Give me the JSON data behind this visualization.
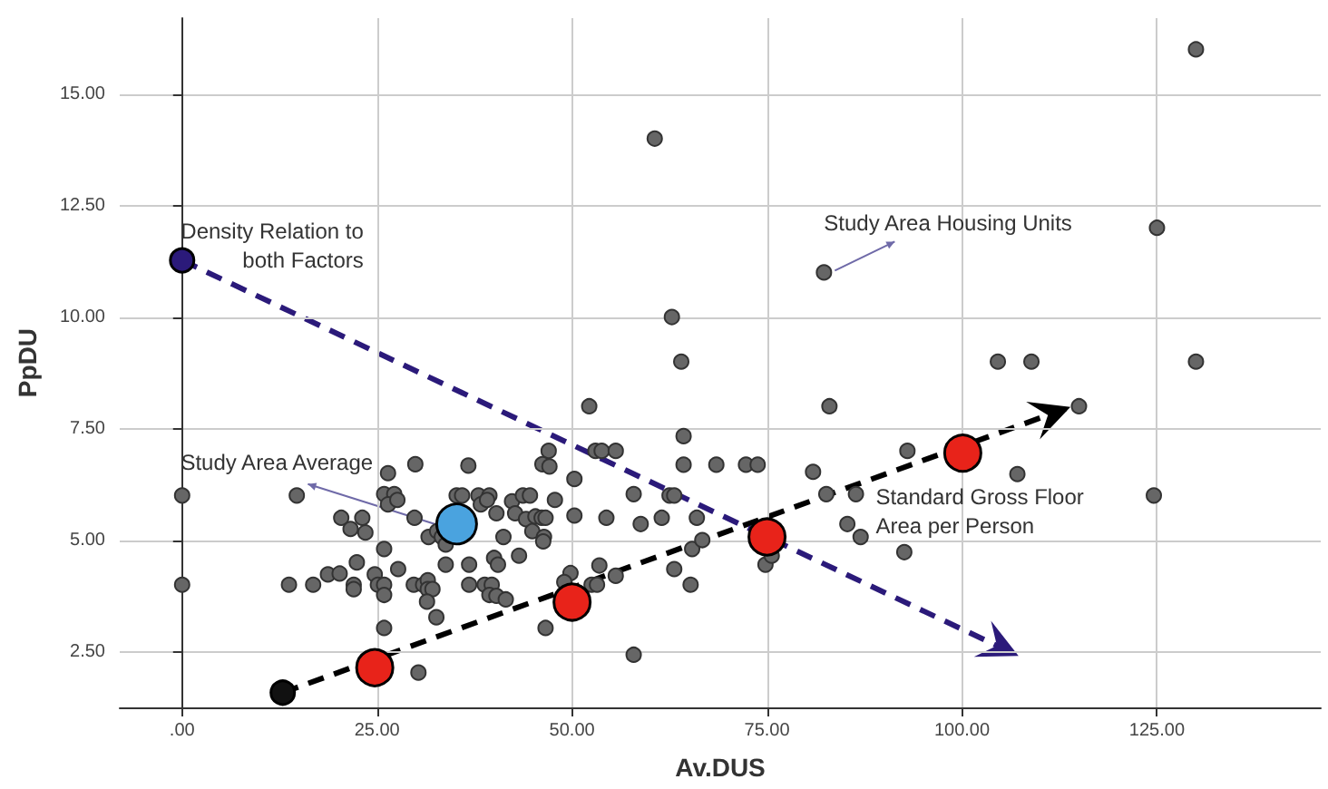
{
  "chart_data": {
    "type": "scatter",
    "xlabel": "Av.DUS",
    "ylabel": "PpDU",
    "xlim": [
      -8,
      146
    ],
    "ylim": [
      1.25,
      16.7
    ],
    "xticks": [
      {
        "value": 0,
        "label": ".00"
      },
      {
        "value": 25,
        "label": "25.00"
      },
      {
        "value": 50,
        "label": "50.00"
      },
      {
        "value": 75,
        "label": "75.00"
      },
      {
        "value": 100,
        "label": "100.00"
      },
      {
        "value": 125,
        "label": "125.00"
      }
    ],
    "yticks": [
      {
        "value": 2.5,
        "label": "2.50"
      },
      {
        "value": 5,
        "label": "5.00"
      },
      {
        "value": 7.5,
        "label": "7.50"
      },
      {
        "value": 10,
        "label": "10.00"
      },
      {
        "value": 12.5,
        "label": "12.50"
      },
      {
        "value": 15,
        "label": "15.00"
      }
    ],
    "grid": true,
    "series": [
      {
        "color": "#666666",
        "marker": "circle",
        "x": [
          0,
          0,
          14.7,
          13.7,
          16.8,
          18.7,
          20.2,
          22,
          22,
          22.4,
          20.4,
          21.6,
          23.1,
          23.5,
          24.7,
          25.1,
          25.9,
          25.9,
          25.9,
          25.9,
          26.4,
          25.9,
          27.2,
          26.4,
          27.6,
          27.7,
          29.9,
          29.8,
          30.3,
          29.7,
          30.9,
          31.5,
          31.5,
          32.1,
          31.4,
          32.6,
          31.6,
          32.7,
          33.3,
          33.8,
          33.8,
          35.2,
          35.9,
          36.7,
          36.8,
          36.8,
          38.0,
          39.4,
          38.3,
          39.1,
          38.8,
          39.7,
          39.4,
          40.3,
          41.5,
          40.0,
          40.5,
          40.3,
          41.2,
          42.3,
          42.7,
          43.2,
          43.7,
          44.6,
          44.1,
          44.9,
          45.3,
          46.1,
          46.6,
          46.4,
          46.3,
          47.8,
          47.0,
          46.2,
          47.1,
          46.6,
          49.8,
          49.0,
          50.3,
          50.3,
          52.2,
          53.0,
          53.8,
          55.6,
          53.5,
          52.5,
          53.2,
          55.6,
          54.4,
          57.9,
          58.8,
          57.9,
          61.5,
          62.5,
          63.1,
          63.1,
          64.3,
          64.3,
          64.0,
          65.4,
          65.2,
          66.0,
          66.7,
          68.5,
          72.3,
          73.8,
          74.8,
          75.6,
          80.9,
          82.6,
          83.0,
          86.4,
          85.3,
          87.0,
          92.6,
          93.0,
          60.6,
          62.8,
          82.3,
          130,
          125,
          104.6,
          108.9,
          130,
          115,
          107.1,
          124.6
        ],
        "values": [
          6.0,
          4.0,
          6.0,
          4.0,
          4.0,
          4.23,
          4.25,
          4.0,
          3.9,
          4.5,
          5.5,
          5.25,
          5.5,
          5.17,
          4.23,
          4.0,
          4.0,
          3.77,
          4.8,
          3.03,
          6.5,
          6.03,
          6.03,
          5.8,
          5.9,
          4.35,
          6.7,
          5.5,
          2.03,
          4.0,
          4.0,
          4.1,
          3.9,
          3.9,
          3.62,
          3.27,
          5.07,
          5.2,
          5.07,
          4.9,
          4.45,
          6.0,
          6.0,
          6.67,
          4.45,
          4.0,
          6.0,
          6.0,
          5.8,
          5.9,
          4.0,
          4.0,
          3.77,
          3.75,
          3.67,
          4.6,
          4.45,
          5.6,
          5.07,
          5.87,
          5.6,
          4.65,
          6.0,
          6.0,
          5.47,
          5.2,
          5.53,
          5.5,
          5.5,
          5.07,
          4.97,
          5.9,
          7.0,
          6.7,
          6.65,
          3.03,
          4.26,
          4.06,
          5.55,
          6.37,
          8.0,
          7.0,
          7.0,
          7.0,
          4.43,
          4.0,
          4.0,
          4.2,
          5.5,
          6.03,
          5.36,
          2.43,
          5.5,
          6.0,
          6.0,
          4.35,
          6.69,
          7.33,
          9.0,
          4.8,
          4.0,
          5.5,
          5.0,
          6.69,
          6.69,
          6.69,
          4.45,
          4.65,
          6.53,
          6.03,
          8.0,
          6.03,
          5.36,
          5.07,
          4.73,
          7.0,
          14.0,
          10.0,
          11.0,
          16.0,
          12.0,
          9.0,
          9.0,
          9.0,
          8.0,
          6.48,
          6.0
        ]
      },
      {
        "color": "#2b1a7a",
        "marker": "circle",
        "x": [
          0
        ],
        "values": [
          11.27
        ]
      },
      {
        "color": "#111111",
        "marker": "circle",
        "x": [
          12.9
        ],
        "values": [
          1.58
        ]
      },
      {
        "color": "#e8231a",
        "marker": "circle",
        "x": [
          24.7,
          50,
          75,
          100.1
        ],
        "values": [
          2.14,
          3.61,
          5.07,
          6.95
        ]
      },
      {
        "color": "#4aa3df",
        "marker": "circle",
        "x": [
          35.2
        ],
        "values": [
          5.36
        ]
      }
    ],
    "annotations": [
      {
        "text": "Density Relation to\nboth Factors",
        "x": 0,
        "y": 11.27
      },
      "Study Area Average",
      {
        "text": "Study Area Housing Units",
        "x": 82.3,
        "y": 11.0
      },
      {
        "text": "Standard Gross Floor\nArea per Person",
        "x": 100.1,
        "y": 6.95
      }
    ]
  }
}
